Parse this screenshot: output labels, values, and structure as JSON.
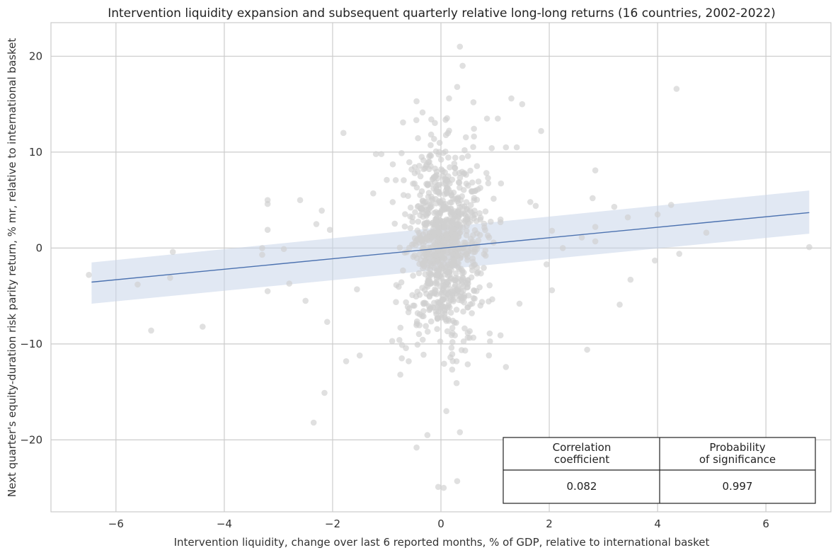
{
  "chart_data": {
    "type": "scatter",
    "title": "Intervention liquidity expansion and subsequent quarterly relative long-long returns (16 countries, 2002-2022)",
    "xlabel": "Intervention liquidity, change over last 6 reported months, % of GDP, relative to international basket",
    "ylabel": "Next quarter's equity-duration risk parity return, % mr, relative to international basket",
    "xlim": [
      -7.2,
      7.2
    ],
    "ylim": [
      -27.5,
      23.5
    ],
    "x_ticks": [
      -6,
      -4,
      -2,
      0,
      2,
      4,
      6
    ],
    "x_tick_labels": [
      "−6",
      "−4",
      "−2",
      "0",
      "2",
      "4",
      "6"
    ],
    "y_ticks": [
      -20,
      -10,
      0,
      10,
      20
    ],
    "y_tick_labels": [
      "−20",
      "−10",
      "0",
      "10",
      "20"
    ],
    "grid": true,
    "point_color": "#cfcfcf",
    "line_color": "#4c72b0",
    "band_color": "#c9d6ea",
    "regression": {
      "x_start": -6.45,
      "y_start": -3.55,
      "x_end": 6.8,
      "y_end": 3.7,
      "ci_lower_start": -5.8,
      "ci_upper_start": -1.5,
      "ci_lower_end": 1.5,
      "ci_upper_end": 6.0
    },
    "outliers": [
      [
        -6.5,
        -2.8
      ],
      [
        -5.6,
        -3.8
      ],
      [
        -5.35,
        -8.6
      ],
      [
        -5.0,
        -3.1
      ],
      [
        -4.95,
        -0.4
      ],
      [
        -4.4,
        -8.2
      ],
      [
        -3.3,
        0.0
      ],
      [
        -3.3,
        -0.7
      ],
      [
        -3.2,
        5.0
      ],
      [
        -3.2,
        4.6
      ],
      [
        -3.2,
        1.9
      ],
      [
        -3.2,
        -4.5
      ],
      [
        -2.9,
        -0.1
      ],
      [
        -2.8,
        -3.7
      ],
      [
        -2.6,
        5.0
      ],
      [
        -2.5,
        -5.5
      ],
      [
        -2.35,
        -18.2
      ],
      [
        -2.3,
        2.5
      ],
      [
        -2.2,
        3.9
      ],
      [
        -2.1,
        -7.7
      ],
      [
        -2.15,
        -15.1
      ],
      [
        -2.05,
        1.9
      ],
      [
        -1.8,
        12.0
      ],
      [
        -1.75,
        -11.8
      ],
      [
        -1.55,
        -4.3
      ],
      [
        -1.2,
        9.8
      ],
      [
        -1.1,
        9.8
      ],
      [
        -0.45,
        -20.8
      ],
      [
        -0.25,
        -19.5
      ],
      [
        -0.05,
        -24.9
      ],
      [
        0.05,
        -25.0
      ],
      [
        0.1,
        -17.0
      ],
      [
        0.3,
        -24.3
      ],
      [
        0.35,
        -19.2
      ],
      [
        0.35,
        21.0
      ],
      [
        0.4,
        19.0
      ],
      [
        0.3,
        16.8
      ],
      [
        -0.45,
        15.3
      ],
      [
        0.15,
        15.6
      ],
      [
        0.6,
        15.2
      ],
      [
        1.05,
        13.5
      ],
      [
        1.3,
        15.6
      ],
      [
        1.5,
        15.0
      ],
      [
        1.85,
        12.2
      ],
      [
        1.4,
        10.5
      ],
      [
        1.2,
        10.5
      ],
      [
        2.7,
        -10.6
      ],
      [
        2.8,
        5.2
      ],
      [
        2.85,
        8.1
      ],
      [
        2.85,
        2.2
      ],
      [
        2.85,
        0.7
      ],
      [
        3.2,
        4.3
      ],
      [
        3.3,
        -5.9
      ],
      [
        3.45,
        3.2
      ],
      [
        3.5,
        -3.3
      ],
      [
        3.95,
        -1.3
      ],
      [
        4.0,
        3.5
      ],
      [
        4.25,
        4.5
      ],
      [
        4.35,
        16.6
      ],
      [
        4.4,
        -0.6
      ],
      [
        4.9,
        1.6
      ],
      [
        6.8,
        0.1
      ],
      [
        2.6,
        1.1
      ],
      [
        2.25,
        0.0
      ],
      [
        2.05,
        1.8
      ],
      [
        2.05,
        -4.4
      ],
      [
        1.95,
        -1.7
      ],
      [
        1.65,
        4.8
      ],
      [
        1.2,
        -12.4
      ],
      [
        1.75,
        4.4
      ],
      [
        -1.0,
        7.1
      ],
      [
        -1.5,
        -11.2
      ],
      [
        -0.75,
        -13.2
      ],
      [
        0.85,
        13.5
      ],
      [
        -0.7,
        13.1
      ],
      [
        0.9,
        -8.9
      ],
      [
        -0.9,
        -9.7
      ],
      [
        1.1,
        -9.1
      ],
      [
        -1.25,
        5.7
      ],
      [
        1.45,
        -5.8
      ]
    ],
    "cloud": {
      "n": 900,
      "x_center": 0.05,
      "x_sd": 0.36,
      "y_center": 0.3,
      "y_sd": 5.0
    },
    "stats_table": {
      "headers": [
        [
          "Correlation",
          "coefficient"
        ],
        [
          "Probability",
          "of significance"
        ]
      ],
      "values": [
        "0.082",
        "0.997"
      ]
    }
  }
}
